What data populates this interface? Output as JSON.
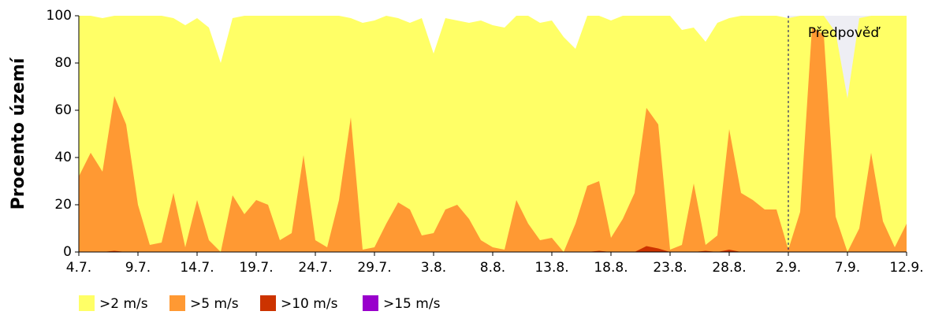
{
  "chart_data": {
    "type": "area",
    "y_label": "Procento území",
    "annotation": "Předpověď",
    "categories": [
      "4.7.",
      null,
      null,
      null,
      null,
      "9.7.",
      null,
      null,
      null,
      null,
      "14.7.",
      null,
      null,
      null,
      null,
      "19.7.",
      null,
      null,
      null,
      null,
      "24.7.",
      null,
      null,
      null,
      null,
      "29.7.",
      null,
      null,
      null,
      null,
      "3.8.",
      null,
      null,
      null,
      null,
      "8.8.",
      null,
      null,
      null,
      null,
      "13.8.",
      null,
      null,
      null,
      null,
      "18.8.",
      null,
      null,
      null,
      null,
      "23.8.",
      null,
      null,
      null,
      null,
      "28.8.",
      null,
      null,
      null,
      null,
      "2.9.",
      null,
      null,
      null,
      null,
      "7.9.",
      null,
      null,
      null,
      null,
      "12.9."
    ],
    "series": [
      {
        "name": ">2 m/s",
        "color": "#ffff66",
        "values": [
          100,
          100,
          99,
          100,
          100,
          100,
          100,
          100,
          99,
          96,
          99,
          95,
          80,
          99,
          100,
          100,
          100,
          100,
          100,
          100,
          100,
          100,
          100,
          99,
          97,
          98,
          100,
          99,
          97,
          99,
          84,
          99,
          98,
          97,
          98,
          96,
          95,
          100,
          100,
          97,
          98,
          91,
          86,
          100,
          100,
          98,
          100,
          100,
          100,
          100,
          100,
          94,
          95,
          89,
          97,
          99,
          100,
          100,
          100,
          100,
          99,
          100,
          100,
          100,
          93,
          65,
          99,
          100,
          100,
          100,
          100
        ]
      },
      {
        "name": ">5 m/s",
        "color": "#ff9933",
        "values": [
          32,
          42,
          34,
          66,
          54,
          20,
          3,
          4,
          25,
          2,
          22,
          5,
          0,
          24,
          16,
          22,
          20,
          5,
          8,
          41,
          5,
          2,
          22,
          57,
          1,
          2,
          12,
          21,
          18,
          7,
          8,
          18,
          20,
          14,
          5,
          2,
          1,
          22,
          12,
          5,
          6,
          0,
          12,
          28,
          30,
          6,
          14,
          25,
          61,
          54,
          1,
          3,
          29,
          3,
          7,
          52,
          25,
          22,
          18,
          18,
          1,
          17,
          95,
          92,
          15,
          0,
          10,
          42,
          13,
          2,
          12
        ]
      },
      {
        "name": ">10 m/s",
        "color": "#cc3300",
        "values": [
          0,
          0,
          0,
          0.5,
          0,
          0,
          0,
          0,
          0,
          0,
          0,
          0,
          0,
          0,
          0,
          0,
          0,
          0,
          0,
          0,
          0,
          0,
          0,
          0,
          0,
          0,
          0,
          0,
          0,
          0,
          0,
          0,
          0,
          0,
          0,
          0,
          0,
          0,
          0,
          0,
          0,
          0,
          0,
          0,
          0.5,
          0,
          0,
          0,
          2.5,
          1.5,
          0,
          0,
          0,
          0.5,
          0,
          1,
          0,
          0,
          0,
          0,
          0,
          0,
          0,
          0,
          0,
          0,
          0,
          0,
          0,
          0,
          0
        ]
      },
      {
        "name": ">15 m/s",
        "color": "#9900cc",
        "values": [
          0,
          0,
          0,
          0,
          0,
          0,
          0,
          0,
          0,
          0,
          0,
          0,
          0,
          0,
          0,
          0,
          0,
          0,
          0,
          0,
          0,
          0,
          0,
          0,
          0,
          0,
          0,
          0,
          0,
          0,
          0,
          0,
          0,
          0,
          0,
          0,
          0,
          0,
          0,
          0,
          0,
          0,
          0,
          0,
          0,
          0,
          0,
          0,
          0,
          0,
          0,
          0,
          0,
          0,
          0,
          0,
          0,
          0,
          0,
          0,
          0,
          0,
          0,
          0,
          0,
          0,
          0,
          0,
          0,
          0,
          0
        ]
      }
    ],
    "ylim": [
      0,
      100
    ],
    "yticks": [
      0,
      20,
      40,
      60,
      80,
      100
    ]
  }
}
